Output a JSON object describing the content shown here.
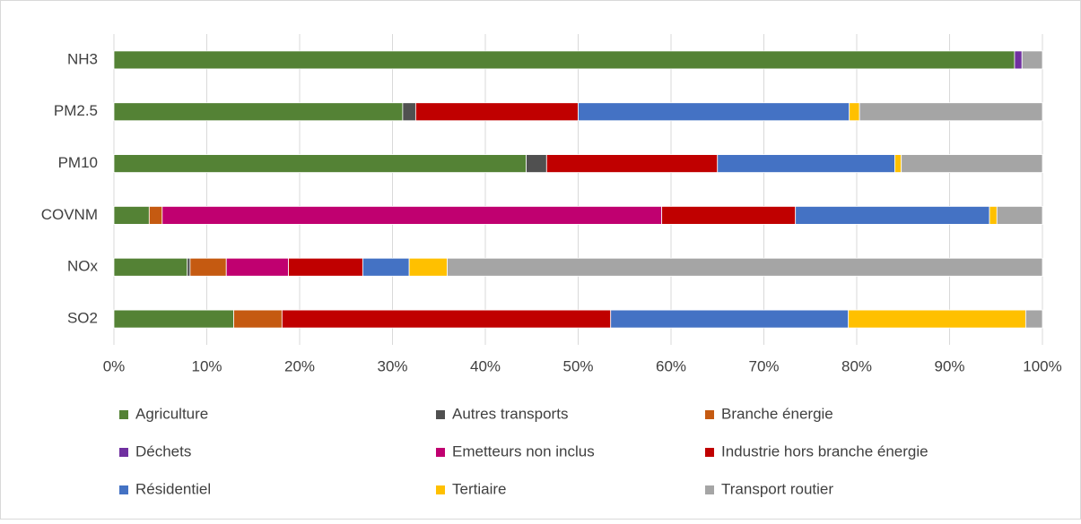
{
  "chart_data": {
    "type": "stacked_bar_horizontal",
    "categories": [
      "NH3",
      "PM2.5",
      "PM10",
      "COVNM",
      "NOx",
      "SO2"
    ],
    "series": [
      {
        "name": "Agriculture",
        "color": "#548235",
        "values": [
          97.0,
          31.1,
          44.4,
          3.8,
          7.9,
          12.9
        ]
      },
      {
        "name": "Autres transports",
        "color": "#505050",
        "values": [
          0,
          1.4,
          2.2,
          0,
          0.3,
          0
        ]
      },
      {
        "name": "Branche énergie",
        "color": "#c55a11",
        "values": [
          0,
          0,
          0,
          1.4,
          3.9,
          5.2
        ]
      },
      {
        "name": "Déchets",
        "color": "#7030a0",
        "values": [
          0.8,
          0,
          0,
          0,
          0,
          0
        ]
      },
      {
        "name": "Emetteurs non inclus",
        "color": "#c00070",
        "values": [
          0,
          0,
          0,
          53.8,
          6.7,
          0
        ]
      },
      {
        "name": "Industrie hors branche énergie",
        "color": "#c00000",
        "values": [
          0,
          17.5,
          18.4,
          14.4,
          8.0,
          35.4
        ]
      },
      {
        "name": "Résidentiel",
        "color": "#4472c4",
        "values": [
          0,
          29.2,
          19.1,
          20.9,
          5.0,
          25.6
        ]
      },
      {
        "name": "Tertiaire",
        "color": "#ffc000",
        "values": [
          0,
          1.1,
          0.7,
          0.8,
          4.1,
          19.1
        ]
      },
      {
        "name": "Transport routier",
        "color": "#a5a5a5",
        "values": [
          2.2,
          19.7,
          15.2,
          4.9,
          64.1,
          1.8
        ]
      }
    ],
    "xlim": [
      0,
      100
    ],
    "xticks": [
      {
        "value": 0,
        "label": "0%"
      },
      {
        "value": 10,
        "label": "10%"
      },
      {
        "value": 20,
        "label": "20%"
      },
      {
        "value": 30,
        "label": "30%"
      },
      {
        "value": 40,
        "label": "40%"
      },
      {
        "value": 50,
        "label": "50%"
      },
      {
        "value": 60,
        "label": "60%"
      },
      {
        "value": 70,
        "label": "70%"
      },
      {
        "value": 80,
        "label": "80%"
      },
      {
        "value": 90,
        "label": "90%"
      },
      {
        "value": 100,
        "label": "100%"
      }
    ],
    "grid": true,
    "legend": "bottom"
  }
}
